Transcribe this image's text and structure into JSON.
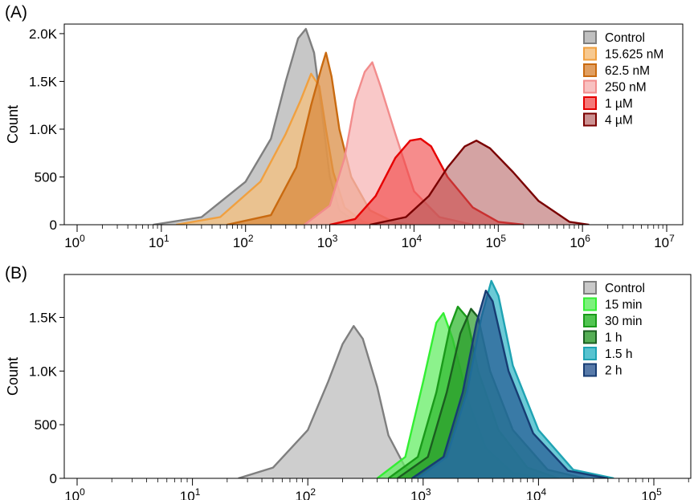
{
  "chart_data": [
    {
      "panel_label": "(A)",
      "type": "area",
      "ylabel": "Count",
      "x_scale": "log10",
      "xlim": [
        1,
        10000000
      ],
      "ylim": [
        0,
        2100
      ],
      "y_ticks": [
        0,
        500,
        1000,
        1500,
        2000
      ],
      "y_tick_labels": [
        "0",
        "500",
        "1.0K",
        "1.5K",
        "2.0K"
      ],
      "x_ticks": [
        1,
        10,
        100,
        1000,
        10000,
        100000,
        1000000,
        10000000
      ],
      "x_tick_labels": [
        {
          "base": "10",
          "exp": "0"
        },
        {
          "base": "10",
          "exp": "1"
        },
        {
          "base": "10",
          "exp": "2"
        },
        {
          "base": "10",
          "exp": "3"
        },
        {
          "base": "10",
          "exp": "4"
        },
        {
          "base": "10",
          "exp": "5"
        },
        {
          "base": "10",
          "exp": "6"
        },
        {
          "base": "10",
          "exp": "7"
        }
      ],
      "legend_position": "top-right",
      "series": [
        {
          "name": "Control",
          "fill": "#bdbdbd",
          "stroke": "#7f7f7f",
          "fill_opacity": 0.85,
          "points": [
            [
              8,
              0
            ],
            [
              30,
              80
            ],
            [
              100,
              450
            ],
            [
              200,
              900
            ],
            [
              300,
              1500
            ],
            [
              420,
              1950
            ],
            [
              520,
              2050
            ],
            [
              650,
              1800
            ],
            [
              800,
              1200
            ],
            [
              1000,
              500
            ],
            [
              1300,
              150
            ],
            [
              2000,
              30
            ],
            [
              3000,
              0
            ]
          ]
        },
        {
          "name": "15.625 nM",
          "fill": "#f6c07d",
          "stroke": "#f0a040",
          "fill_opacity": 0.75,
          "points": [
            [
              15,
              0
            ],
            [
              50,
              80
            ],
            [
              150,
              450
            ],
            [
              300,
              950
            ],
            [
              450,
              1300
            ],
            [
              600,
              1580
            ],
            [
              750,
              1450
            ],
            [
              900,
              1000
            ],
            [
              1100,
              550
            ],
            [
              1500,
              180
            ],
            [
              2500,
              30
            ],
            [
              4000,
              0
            ]
          ]
        },
        {
          "name": "62.5 nM",
          "fill": "#d9873a",
          "stroke": "#c96a10",
          "fill_opacity": 0.7,
          "points": [
            [
              60,
              0
            ],
            [
              200,
              100
            ],
            [
              400,
              600
            ],
            [
              600,
              1250
            ],
            [
              800,
              1650
            ],
            [
              900,
              1800
            ],
            [
              1050,
              1550
            ],
            [
              1300,
              1000
            ],
            [
              1800,
              500
            ],
            [
              3000,
              150
            ],
            [
              6000,
              20
            ],
            [
              10000,
              0
            ]
          ]
        },
        {
          "name": "250 nM",
          "fill": "#f7b6b6",
          "stroke": "#f28c8c",
          "fill_opacity": 0.75,
          "points": [
            [
              500,
              0
            ],
            [
              1000,
              200
            ],
            [
              1500,
              700
            ],
            [
              2000,
              1300
            ],
            [
              2600,
              1600
            ],
            [
              3200,
              1700
            ],
            [
              4000,
              1450
            ],
            [
              6000,
              950
            ],
            [
              10000,
              350
            ],
            [
              20000,
              80
            ],
            [
              50000,
              0
            ]
          ]
        },
        {
          "name": "1 µM",
          "fill": "#f04040",
          "stroke": "#e60000",
          "fill_opacity": 0.6,
          "points": [
            [
              1000,
              0
            ],
            [
              2000,
              60
            ],
            [
              3500,
              300
            ],
            [
              6000,
              700
            ],
            [
              9000,
              880
            ],
            [
              12000,
              900
            ],
            [
              16000,
              820
            ],
            [
              25000,
              500
            ],
            [
              50000,
              180
            ],
            [
              100000,
              30
            ],
            [
              200000,
              0
            ]
          ]
        },
        {
          "name": "4 µM",
          "fill": "#b05858",
          "stroke": "#7a0000",
          "fill_opacity": 0.55,
          "points": [
            [
              3000,
              0
            ],
            [
              8000,
              80
            ],
            [
              15000,
              300
            ],
            [
              25000,
              600
            ],
            [
              40000,
              820
            ],
            [
              55000,
              880
            ],
            [
              80000,
              800
            ],
            [
              150000,
              550
            ],
            [
              300000,
              250
            ],
            [
              700000,
              30
            ],
            [
              1200000,
              0
            ]
          ]
        }
      ]
    },
    {
      "panel_label": "(B)",
      "type": "area",
      "ylabel": "Count",
      "x_scale": "log10",
      "xlim": [
        1,
        300000
      ],
      "ylim": [
        0,
        1900
      ],
      "y_ticks": [
        0,
        500,
        1000,
        1500
      ],
      "y_tick_labels": [
        "0",
        "500",
        "1.0K",
        "1.5K"
      ],
      "x_ticks": [
        1,
        10,
        100,
        1000,
        10000,
        100000
      ],
      "x_tick_labels": [
        {
          "base": "10",
          "exp": "0"
        },
        {
          "base": "10",
          "exp": "1"
        },
        {
          "base": "10",
          "exp": "2"
        },
        {
          "base": "10",
          "exp": "3"
        },
        {
          "base": "10",
          "exp": "4"
        },
        {
          "base": "10",
          "exp": "5"
        }
      ],
      "legend_position": "top-right",
      "series": [
        {
          "name": "Control",
          "fill": "#c9c9c9",
          "stroke": "#7f7f7f",
          "fill_opacity": 0.9,
          "points": [
            [
              25,
              0
            ],
            [
              50,
              100
            ],
            [
              100,
              450
            ],
            [
              150,
              900
            ],
            [
              200,
              1250
            ],
            [
              250,
              1420
            ],
            [
              300,
              1300
            ],
            [
              400,
              850
            ],
            [
              500,
              400
            ],
            [
              700,
              100
            ],
            [
              1000,
              0
            ]
          ]
        },
        {
          "name": "15 min",
          "fill": "#66ee66",
          "stroke": "#33ee33",
          "fill_opacity": 0.75,
          "points": [
            [
              400,
              0
            ],
            [
              700,
              200
            ],
            [
              1000,
              900
            ],
            [
              1300,
              1450
            ],
            [
              1500,
              1540
            ],
            [
              1800,
              1300
            ],
            [
              2500,
              700
            ],
            [
              3500,
              280
            ],
            [
              6000,
              50
            ],
            [
              12000,
              0
            ]
          ]
        },
        {
          "name": "30 min",
          "fill": "#33bb33",
          "stroke": "#1a9a1a",
          "fill_opacity": 0.75,
          "points": [
            [
              500,
              0
            ],
            [
              900,
              200
            ],
            [
              1300,
              800
            ],
            [
              1700,
              1400
            ],
            [
              2000,
              1600
            ],
            [
              2400,
              1500
            ],
            [
              3000,
              1000
            ],
            [
              4500,
              450
            ],
            [
              8000,
              100
            ],
            [
              15000,
              0
            ]
          ]
        },
        {
          "name": "1 h",
          "fill": "#2a9a2a",
          "stroke": "#1b5e20",
          "fill_opacity": 0.7,
          "points": [
            [
              600,
              0
            ],
            [
              1100,
              200
            ],
            [
              1600,
              800
            ],
            [
              2100,
              1350
            ],
            [
              2600,
              1580
            ],
            [
              3000,
              1500
            ],
            [
              3800,
              1000
            ],
            [
              6000,
              450
            ],
            [
              12000,
              80
            ],
            [
              25000,
              0
            ]
          ]
        },
        {
          "name": "1.5 h",
          "fill": "#3ab8c8",
          "stroke": "#1fa3b3",
          "fill_opacity": 0.75,
          "points": [
            [
              900,
              0
            ],
            [
              1600,
              200
            ],
            [
              2400,
              800
            ],
            [
              3200,
              1500
            ],
            [
              3900,
              1840
            ],
            [
              4500,
              1700
            ],
            [
              6000,
              1050
            ],
            [
              10000,
              450
            ],
            [
              20000,
              80
            ],
            [
              45000,
              0
            ]
          ]
        },
        {
          "name": "2 h",
          "fill": "#1f4e8c",
          "stroke": "#173c73",
          "fill_opacity": 0.65,
          "points": [
            [
              800,
              0
            ],
            [
              1500,
              200
            ],
            [
              2200,
              800
            ],
            [
              2900,
              1450
            ],
            [
              3500,
              1750
            ],
            [
              4000,
              1650
            ],
            [
              5500,
              1000
            ],
            [
              9000,
              420
            ],
            [
              18000,
              70
            ],
            [
              40000,
              0
            ]
          ]
        }
      ]
    }
  ]
}
